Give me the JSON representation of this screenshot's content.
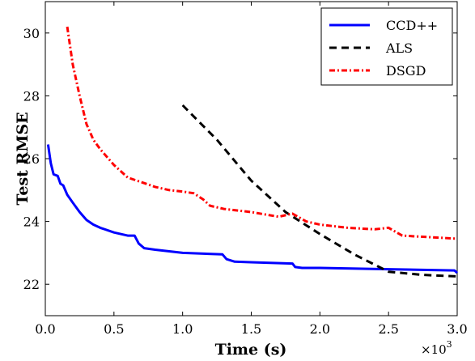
{
  "chart_data": {
    "type": "line",
    "xlabel": "Time (s)",
    "ylabel": "Test RMSE",
    "x_scale_label": "×10",
    "x_scale_exponent": "3",
    "xlim": [
      0.0,
      3.0
    ],
    "ylim": [
      21.0,
      31.0
    ],
    "x_ticks": [
      "0.0",
      "0.5",
      "1.0",
      "1.5",
      "2.0",
      "2.5",
      "3.0"
    ],
    "x_tick_values": [
      0.0,
      0.5,
      1.0,
      1.5,
      2.0,
      2.5,
      3.0
    ],
    "y_ticks": [
      "22",
      "24",
      "26",
      "28",
      "30"
    ],
    "y_tick_values": [
      22,
      24,
      26,
      28,
      30
    ],
    "grid": false,
    "legend_position": "top-right",
    "series": [
      {
        "name": "CCD++",
        "color": "#0000ff",
        "style": "solid",
        "x": [
          0.02,
          0.04,
          0.06,
          0.09,
          0.11,
          0.13,
          0.16,
          0.2,
          0.25,
          0.3,
          0.35,
          0.4,
          0.5,
          0.6,
          0.65,
          0.68,
          0.72,
          0.8,
          1.0,
          1.29,
          1.32,
          1.38,
          1.5,
          1.8,
          1.82,
          1.87,
          2.0,
          2.5,
          2.98,
          3.0
        ],
        "y": [
          26.45,
          25.85,
          25.5,
          25.45,
          25.2,
          25.15,
          24.85,
          24.6,
          24.3,
          24.05,
          23.9,
          23.8,
          23.65,
          23.55,
          23.55,
          23.3,
          23.15,
          23.1,
          23.0,
          22.95,
          22.8,
          22.72,
          22.7,
          22.66,
          22.55,
          22.52,
          22.52,
          22.48,
          22.44,
          22.36
        ]
      },
      {
        "name": "ALS",
        "color": "#000000",
        "style": "dashed",
        "x": [
          1.0,
          1.25,
          1.5,
          1.75,
          2.0,
          2.25,
          2.5,
          2.75,
          3.0
        ],
        "y": [
          27.7,
          26.6,
          25.3,
          24.3,
          23.6,
          22.95,
          22.4,
          22.3,
          22.25
        ]
      },
      {
        "name": "DSGD",
        "color": "#ff0000",
        "style": "dashdot",
        "x": [
          0.16,
          0.2,
          0.25,
          0.3,
          0.35,
          0.4,
          0.5,
          0.6,
          0.7,
          0.8,
          0.9,
          1.0,
          1.08,
          1.15,
          1.2,
          1.3,
          1.5,
          1.7,
          1.8,
          1.9,
          2.0,
          2.2,
          2.4,
          2.5,
          2.6,
          2.8,
          3.0
        ],
        "y": [
          30.2,
          29.0,
          28.0,
          27.1,
          26.6,
          26.3,
          25.8,
          25.4,
          25.25,
          25.1,
          25.0,
          24.95,
          24.9,
          24.7,
          24.5,
          24.4,
          24.3,
          24.15,
          24.25,
          24.0,
          23.9,
          23.8,
          23.75,
          23.8,
          23.55,
          23.5,
          23.45
        ]
      }
    ]
  }
}
